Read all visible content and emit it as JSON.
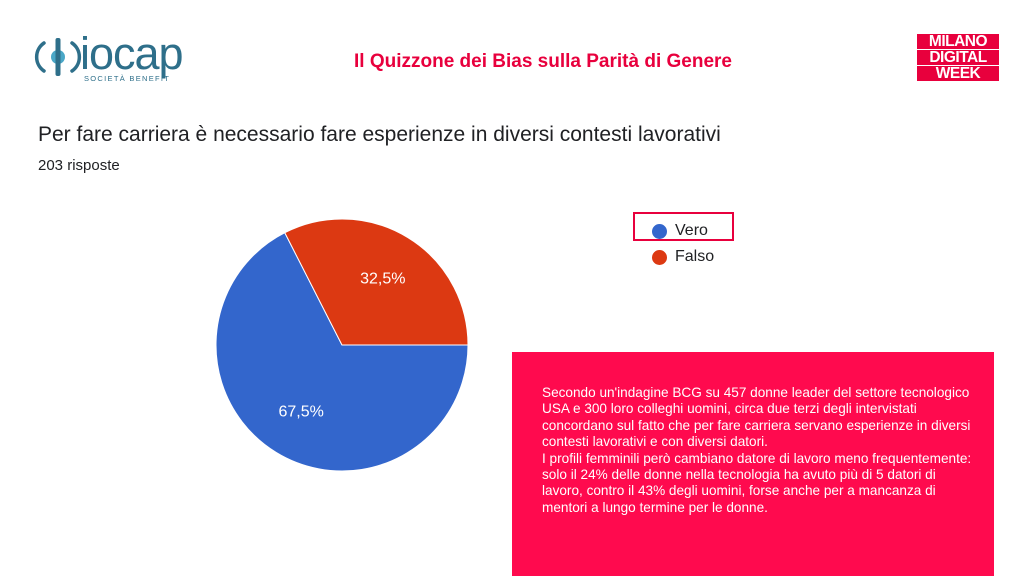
{
  "header": {
    "logo_text": "iocap",
    "logo_subtitle": "SOCIETÀ BENEFIT",
    "title": "Il Quizzone dei Bias sulla Parità di Genere",
    "event_logo_lines": [
      "MILANO",
      "DIGITAL",
      "WEEK"
    ]
  },
  "question": {
    "text": "Per fare carriera è necessario fare esperienze in diversi contesti lavorativi",
    "responses": "203 risposte"
  },
  "legend": {
    "items": [
      {
        "label": "Vero",
        "color": "#3366cc"
      },
      {
        "label": "Falso",
        "color": "#dc3912"
      }
    ]
  },
  "info": {
    "paragraph_1": "Secondo un'indagine BCG su 457 donne leader del settore tecnologico USA e 300 loro colleghi uomini, circa due terzi degli intervistati concordano sul fatto che per fare carriera servano esperienze in diversi contesti lavorativi e con diversi datori.",
    "paragraph_2": "I profili femminili però cambiano datore di lavoro meno frequentemente: solo il 24% delle donne nella tecnologia ha avuto più di 5 datori di lavoro, contro il 43% degli uomini, forse anche per a mancanza di mentori a lungo termine per le donne."
  },
  "colors": {
    "accent": "#e8003d",
    "info_background": "#ff0a4e",
    "brand_teal": "#2e6f8a"
  },
  "chart_data": {
    "type": "pie",
    "categories": [
      "Vero",
      "Falso"
    ],
    "values": [
      67.5,
      32.5
    ],
    "labels": [
      "67,5%",
      "32,5%"
    ],
    "colors": [
      "#3366cc",
      "#dc3912"
    ],
    "legend_position": "right"
  }
}
